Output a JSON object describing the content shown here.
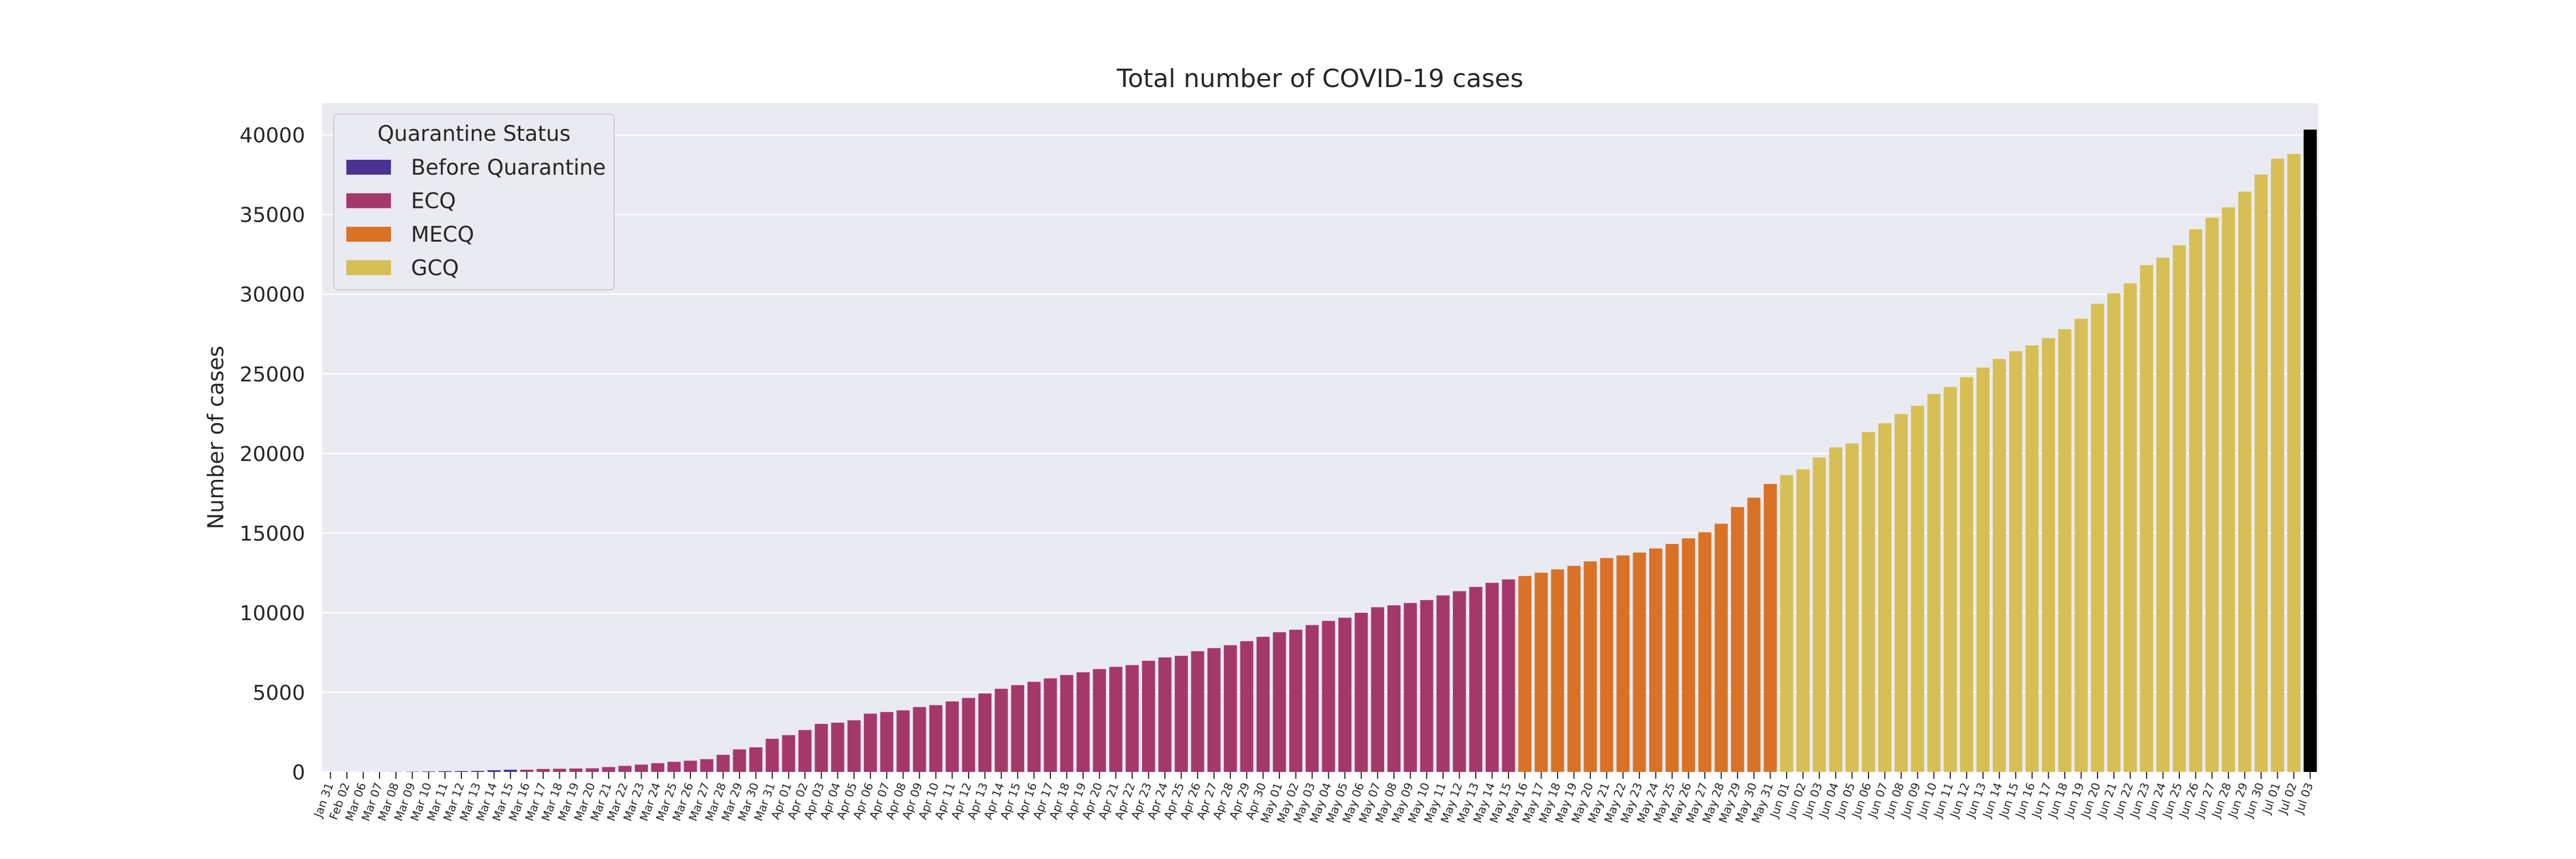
{
  "chart_data": {
    "type": "bar",
    "title": "Total number of COVID-19 cases",
    "xlabel": "",
    "ylabel": "Number of cases",
    "ylim": [
      0,
      42000
    ],
    "yticks": [
      0,
      5000,
      10000,
      15000,
      20000,
      25000,
      30000,
      35000,
      40000
    ],
    "grid": true,
    "legend": {
      "title": "Quarantine Status",
      "placement": "top-left",
      "entries": [
        {
          "name": "Before Quarantine",
          "color": "#4a3393"
        },
        {
          "name": "ECQ",
          "color": "#a5386b"
        },
        {
          "name": "MECQ",
          "color": "#d97226"
        },
        {
          "name": "GCQ",
          "color": "#d6bf54"
        }
      ]
    },
    "categories": [
      "Jan 31",
      "Feb 02",
      "Mar 06",
      "Mar 07",
      "Mar 08",
      "Mar 09",
      "Mar 10",
      "Mar 11",
      "Mar 12",
      "Mar 13",
      "Mar 14",
      "Mar 15",
      "Mar 16",
      "Mar 17",
      "Mar 18",
      "Mar 19",
      "Mar 20",
      "Mar 21",
      "Mar 22",
      "Mar 23",
      "Mar 24",
      "Mar 25",
      "Mar 26",
      "Mar 27",
      "Mar 28",
      "Mar 29",
      "Mar 30",
      "Mar 31",
      "Apr 01",
      "Apr 02",
      "Apr 03",
      "Apr 04",
      "Apr 05",
      "Apr 06",
      "Apr 07",
      "Apr 08",
      "Apr 09",
      "Apr 10",
      "Apr 11",
      "Apr 12",
      "Apr 13",
      "Apr 14",
      "Apr 15",
      "Apr 16",
      "Apr 17",
      "Apr 18",
      "Apr 19",
      "Apr 20",
      "Apr 21",
      "Apr 22",
      "Apr 23",
      "Apr 24",
      "Apr 25",
      "Apr 26",
      "Apr 27",
      "Apr 28",
      "Apr 29",
      "Apr 30",
      "May 01",
      "May 02",
      "May 03",
      "May 04",
      "May 05",
      "May 06",
      "May 07",
      "May 08",
      "May 09",
      "May 10",
      "May 11",
      "May 12",
      "May 13",
      "May 14",
      "May 15",
      "May 16",
      "May 17",
      "May 18",
      "May 19",
      "May 20",
      "May 21",
      "May 22",
      "May 23",
      "May 24",
      "May 25",
      "May 26",
      "May 27",
      "May 28",
      "May 29",
      "May 30",
      "May 31",
      "Jun 01",
      "Jun 02",
      "Jun 03",
      "Jun 04",
      "Jun 05",
      "Jun 06",
      "Jun 07",
      "Jun 08",
      "Jun 09",
      "Jun 10",
      "Jun 11",
      "Jun 12",
      "Jun 13",
      "Jun 14",
      "Jun 15",
      "Jun 16",
      "Jun 17",
      "Jun 18",
      "Jun 19",
      "Jun 20",
      "Jun 21",
      "Jun 22",
      "Jun 23",
      "Jun 24",
      "Jun 25",
      "Jun 26",
      "Jun 27",
      "Jun 28",
      "Jun 29",
      "Jun 30",
      "Jul 01",
      "Jul 02",
      "Jul 03"
    ],
    "values": [
      1,
      3,
      5,
      6,
      10,
      20,
      33,
      49,
      52,
      64,
      111,
      140,
      142,
      187,
      202,
      217,
      230,
      307,
      380,
      462,
      552,
      636,
      707,
      803,
      1075,
      1418,
      1546,
      2084,
      2311,
      2633,
      3018,
      3094,
      3246,
      3660,
      3764,
      3870,
      4076,
      4195,
      4428,
      4648,
      4932,
      5223,
      5453,
      5660,
      5878,
      6087,
      6259,
      6459,
      6599,
      6710,
      6981,
      7192,
      7294,
      7579,
      7777,
      7958,
      8212,
      8488,
      8772,
      8928,
      9223,
      9485,
      9684,
      9999,
      10343,
      10463,
      10610,
      10794,
      11086,
      11350,
      11618,
      11876,
      12091,
      12305,
      12513,
      12718,
      12942,
      13221,
      13434,
      13597,
      13777,
      14035,
      14319,
      14669,
      15049,
      15588,
      16634,
      17224,
      18086,
      18638,
      18997,
      19748,
      20382,
      20626,
      21340,
      21895,
      22474,
      22992,
      23732,
      24175,
      24787,
      25392,
      25930,
      26420,
      26781,
      27238,
      27799,
      28459,
      29400,
      30052,
      30682,
      31825,
      32295,
      33069,
      34073,
      34803,
      35455,
      36438,
      37514,
      38511,
      38805,
      40336
    ],
    "statuses": [
      "Before Quarantine",
      "Before Quarantine",
      "Before Quarantine",
      "Before Quarantine",
      "Before Quarantine",
      "Before Quarantine",
      "Before Quarantine",
      "Before Quarantine",
      "Before Quarantine",
      "Before Quarantine",
      "Before Quarantine",
      "Before Quarantine",
      "ECQ",
      "ECQ",
      "ECQ",
      "ECQ",
      "ECQ",
      "ECQ",
      "ECQ",
      "ECQ",
      "ECQ",
      "ECQ",
      "ECQ",
      "ECQ",
      "ECQ",
      "ECQ",
      "ECQ",
      "ECQ",
      "ECQ",
      "ECQ",
      "ECQ",
      "ECQ",
      "ECQ",
      "ECQ",
      "ECQ",
      "ECQ",
      "ECQ",
      "ECQ",
      "ECQ",
      "ECQ",
      "ECQ",
      "ECQ",
      "ECQ",
      "ECQ",
      "ECQ",
      "ECQ",
      "ECQ",
      "ECQ",
      "ECQ",
      "ECQ",
      "ECQ",
      "ECQ",
      "ECQ",
      "ECQ",
      "ECQ",
      "ECQ",
      "ECQ",
      "ECQ",
      "ECQ",
      "ECQ",
      "ECQ",
      "ECQ",
      "ECQ",
      "ECQ",
      "ECQ",
      "ECQ",
      "ECQ",
      "ECQ",
      "ECQ",
      "ECQ",
      "ECQ",
      "ECQ",
      "ECQ",
      "MECQ",
      "MECQ",
      "MECQ",
      "MECQ",
      "MECQ",
      "MECQ",
      "MECQ",
      "MECQ",
      "MECQ",
      "MECQ",
      "MECQ",
      "MECQ",
      "MECQ",
      "MECQ",
      "MECQ",
      "MECQ",
      "GCQ",
      "GCQ",
      "GCQ",
      "GCQ",
      "GCQ",
      "GCQ",
      "GCQ",
      "GCQ",
      "GCQ",
      "GCQ",
      "GCQ",
      "GCQ",
      "GCQ",
      "GCQ",
      "GCQ",
      "GCQ",
      "GCQ",
      "GCQ",
      "GCQ",
      "GCQ",
      "GCQ",
      "GCQ",
      "GCQ",
      "GCQ",
      "GCQ",
      "GCQ",
      "GCQ",
      "GCQ",
      "GCQ",
      "GCQ",
      "GCQ",
      "GCQ"
    ],
    "colors": {
      "background": "#eaeaf2",
      "grid": "#ffffff",
      "text": "#262626"
    }
  }
}
